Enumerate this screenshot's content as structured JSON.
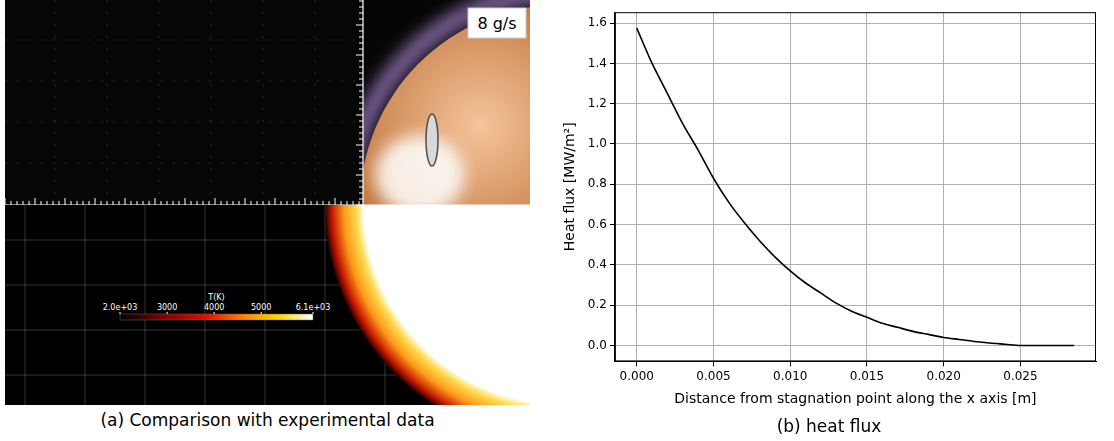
{
  "chart_data": {
    "type": "line",
    "title": "(b) heat flux",
    "xlabel": "Distance from stagnation point along the x axis [m]",
    "ylabel": "Heat flux [MW/m²]",
    "x": [
      0,
      0.001,
      0.002,
      0.003,
      0.004,
      0.005,
      0.006,
      0.007,
      0.008,
      0.009,
      0.01,
      0.011,
      0.012,
      0.013,
      0.014,
      0.015,
      0.016,
      0.017,
      0.018,
      0.019,
      0.02,
      0.021,
      0.022,
      0.023,
      0.024,
      0.025,
      0.0265,
      0.0285
    ],
    "values": [
      1.575,
      1.4,
      1.25,
      1.1,
      0.97,
      0.83,
      0.71,
      0.61,
      0.52,
      0.44,
      0.37,
      0.31,
      0.26,
      0.21,
      0.17,
      0.14,
      0.11,
      0.09,
      0.07,
      0.055,
      0.04,
      0.03,
      0.02,
      0.012,
      0.006,
      0.0,
      0.0,
      0.0
    ],
    "color": "#000000",
    "xlim": [
      -0.001425,
      0.029925
    ],
    "ylim": [
      -0.079,
      1.654
    ],
    "xticks": [
      {
        "value": 0,
        "label": "0.000"
      },
      {
        "value": 0.005,
        "label": "0.005"
      },
      {
        "value": 0.01,
        "label": "0.010"
      },
      {
        "value": 0.015,
        "label": "0.015"
      },
      {
        "value": 0.02,
        "label": "0.020"
      },
      {
        "value": 0.025,
        "label": "0.025"
      }
    ],
    "yticks": [
      {
        "value": 0,
        "label": "0.0"
      },
      {
        "value": 0.2,
        "label": "0.2"
      },
      {
        "value": 0.4,
        "label": "0.4"
      },
      {
        "value": 0.6,
        "label": "0.6"
      },
      {
        "value": 0.8,
        "label": "0.8"
      },
      {
        "value": 1.0,
        "label": "1.0"
      },
      {
        "value": 1.2,
        "label": "1.2"
      },
      {
        "value": 1.4,
        "label": "1.4"
      },
      {
        "value": 1.6,
        "label": "1.6"
      }
    ],
    "grid": true
  },
  "image_panel": {
    "caption": "(a) Comparison with experimental data",
    "label": "8 g/s",
    "colorbar": {
      "title": "T(K)",
      "range": [
        2000,
        6100
      ],
      "ticks": [
        {
          "value": 2000,
          "label": "2.0e+03"
        },
        3000,
        4000,
        5000,
        {
          "value": 6100,
          "label": "6.1e+03"
        }
      ]
    }
  }
}
